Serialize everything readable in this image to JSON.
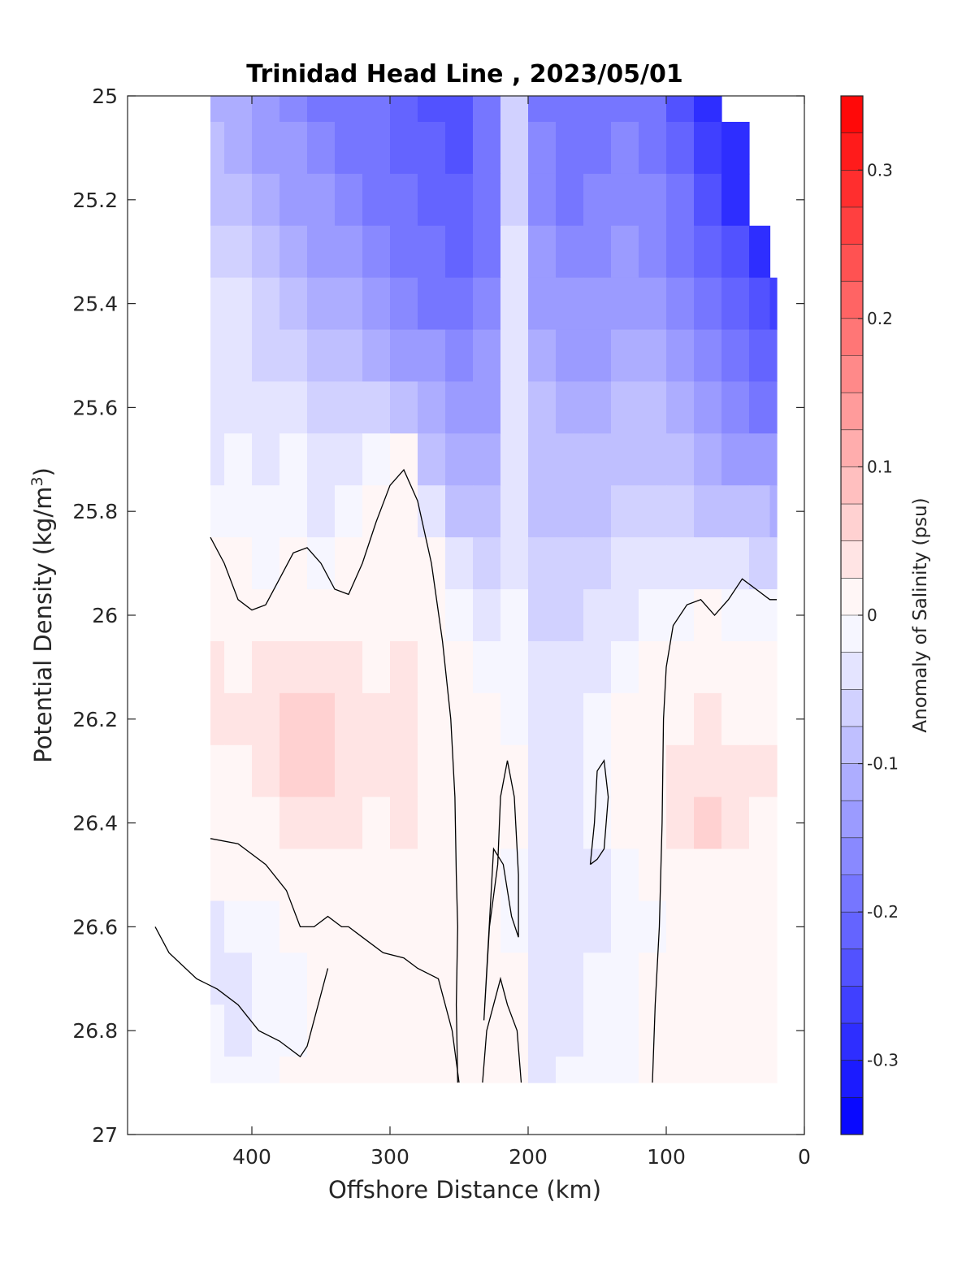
{
  "chart_data": {
    "type": "heatmap",
    "title": "Trinidad Head Line , 2023/05/01",
    "xlabel": "Offshore Distance (km)",
    "ylabel": "Potential Density (kg/m",
    "ylabel_sup": "3",
    "ylabel_close": ")",
    "colorbar_label": "Anomaly of Salinity (psu)",
    "xlim": [
      490,
      0
    ],
    "ylim": [
      25,
      27
    ],
    "x_ticks": [
      400,
      300,
      200,
      100,
      0
    ],
    "y_ticks": [
      "25",
      "25.2",
      "25.4",
      "25.6",
      "25.8",
      "26",
      "26.2",
      "26.4",
      "26.6",
      "26.8",
      "27"
    ],
    "colorbar_range": [
      -0.35,
      0.35
    ],
    "colorbar_step": 0.025,
    "colorbar_ticks": [
      "-0.3",
      "-0.2",
      "-0.1",
      "0",
      "0.1",
      "0.2",
      "0.3"
    ],
    "colormap": {
      "negative": "#0000ff",
      "zero": "#ffffff",
      "positive": "#ff0000"
    },
    "x": [
      430,
      410,
      390,
      370,
      350,
      330,
      310,
      290,
      270,
      250,
      230,
      210,
      190,
      170,
      150,
      130,
      110,
      90,
      70,
      50,
      30,
      20
    ],
    "y": [
      25.0,
      25.1,
      25.2,
      25.3,
      25.4,
      25.5,
      25.6,
      25.7,
      25.8,
      25.9,
      26.0,
      26.1,
      26.2,
      26.3,
      26.4,
      26.5,
      26.6,
      26.7,
      26.8,
      26.9
    ],
    "z": [
      [
        -0.11,
        -0.12,
        -0.14,
        -0.16,
        -0.18,
        -0.19,
        -0.2,
        -0.22,
        -0.23,
        -0.24,
        -0.2,
        -0.06,
        -0.18,
        -0.2,
        -0.19,
        -0.18,
        -0.19,
        -0.24,
        -0.3,
        null,
        null,
        null
      ],
      [
        -0.1,
        -0.11,
        -0.13,
        -0.15,
        -0.17,
        -0.18,
        -0.19,
        -0.21,
        -0.22,
        -0.23,
        -0.19,
        -0.06,
        -0.17,
        -0.19,
        -0.18,
        -0.17,
        -0.18,
        -0.22,
        -0.27,
        -0.3,
        null,
        null
      ],
      [
        -0.08,
        -0.09,
        -0.11,
        -0.13,
        -0.15,
        -0.16,
        -0.18,
        -0.2,
        -0.21,
        -0.22,
        -0.19,
        -0.06,
        -0.16,
        -0.18,
        -0.17,
        -0.16,
        -0.17,
        -0.2,
        -0.24,
        -0.28,
        null,
        null
      ],
      [
        -0.06,
        -0.07,
        -0.09,
        -0.11,
        -0.13,
        -0.15,
        -0.16,
        -0.18,
        -0.2,
        -0.21,
        -0.18,
        -0.05,
        -0.15,
        -0.17,
        -0.16,
        -0.15,
        -0.16,
        -0.18,
        -0.21,
        -0.25,
        -0.28,
        null
      ],
      [
        -0.05,
        -0.05,
        -0.07,
        -0.09,
        -0.11,
        -0.12,
        -0.14,
        -0.16,
        -0.18,
        -0.19,
        -0.17,
        -0.05,
        -0.14,
        -0.15,
        -0.15,
        -0.14,
        -0.14,
        -0.16,
        -0.19,
        -0.22,
        -0.25,
        -0.26
      ],
      [
        -0.04,
        -0.04,
        -0.06,
        -0.07,
        -0.09,
        -0.1,
        -0.11,
        -0.13,
        -0.15,
        -0.17,
        -0.15,
        -0.05,
        -0.12,
        -0.14,
        -0.13,
        -0.12,
        -0.12,
        -0.14,
        -0.16,
        -0.19,
        -0.21,
        -0.22
      ],
      [
        -0.03,
        -0.03,
        -0.05,
        -0.05,
        -0.07,
        -0.07,
        -0.06,
        -0.08,
        -0.12,
        -0.14,
        -0.13,
        -0.04,
        -0.1,
        -0.12,
        -0.11,
        -0.1,
        -0.1,
        -0.11,
        -0.13,
        -0.16,
        -0.18,
        -0.18
      ],
      [
        -0.03,
        -0.02,
        -0.04,
        -0.01,
        -0.05,
        -0.04,
        -0.02,
        0.0,
        -0.08,
        -0.11,
        -0.11,
        -0.04,
        -0.09,
        -0.1,
        -0.09,
        -0.08,
        -0.08,
        -0.09,
        -0.11,
        -0.13,
        -0.14,
        -0.15
      ],
      [
        -0.02,
        -0.01,
        -0.02,
        -0.01,
        -0.03,
        -0.02,
        0.0,
        0.01,
        -0.04,
        -0.08,
        -0.09,
        -0.03,
        -0.08,
        -0.09,
        -0.08,
        -0.07,
        -0.06,
        -0.07,
        -0.08,
        -0.09,
        -0.1,
        -0.11
      ],
      [
        0.0,
        0.0,
        -0.01,
        0.0,
        -0.01,
        0.0,
        0.01,
        0.02,
        0.0,
        -0.05,
        -0.07,
        -0.03,
        -0.07,
        -0.07,
        -0.06,
        -0.05,
        -0.04,
        -0.04,
        -0.05,
        -0.05,
        -0.06,
        -0.06
      ],
      [
        0.01,
        0.01,
        0.01,
        0.01,
        0.02,
        0.02,
        0.02,
        0.02,
        0.01,
        -0.02,
        -0.05,
        -0.02,
        -0.06,
        -0.06,
        -0.05,
        -0.03,
        -0.02,
        -0.01,
        0.0,
        -0.01,
        -0.02,
        -0.02
      ],
      [
        0.03,
        0.02,
        0.03,
        0.03,
        0.03,
        0.03,
        0.02,
        0.03,
        0.02,
        0.0,
        -0.02,
        -0.02,
        -0.05,
        -0.05,
        -0.03,
        -0.01,
        0.0,
        0.01,
        0.01,
        0.0,
        0.0,
        0.01
      ],
      [
        0.03,
        0.03,
        0.04,
        0.05,
        0.05,
        0.04,
        0.03,
        0.03,
        0.02,
        0.0,
        0.0,
        -0.01,
        -0.04,
        -0.04,
        -0.02,
        0.0,
        0.01,
        0.02,
        0.03,
        0.02,
        0.02,
        0.02
      ],
      [
        0.02,
        0.02,
        0.03,
        0.05,
        0.05,
        0.04,
        0.03,
        0.03,
        0.02,
        0.0,
        0.0,
        0.0,
        -0.04,
        -0.04,
        -0.01,
        0.0,
        0.01,
        0.03,
        0.03,
        0.03,
        0.03,
        0.03
      ],
      [
        0.02,
        0.01,
        0.02,
        0.04,
        0.04,
        0.03,
        0.02,
        0.03,
        0.01,
        0.0,
        0.0,
        0.0,
        -0.04,
        -0.04,
        -0.02,
        0.0,
        0.01,
        0.03,
        0.05,
        0.03,
        0.02,
        0.02
      ],
      [
        0.0,
        0.0,
        0.01,
        0.02,
        0.02,
        0.01,
        0.01,
        0.01,
        0.0,
        0.0,
        0.0,
        -0.01,
        -0.05,
        -0.04,
        -0.03,
        -0.01,
        0.0,
        0.02,
        0.02,
        0.02,
        0.02,
        0.01
      ],
      [
        -0.03,
        -0.02,
        -0.01,
        0.0,
        0.0,
        0.0,
        0.0,
        0.0,
        0.0,
        0.0,
        0.0,
        -0.01,
        -0.04,
        -0.04,
        -0.03,
        -0.02,
        -0.01,
        0.0,
        0.01,
        0.0,
        0.0,
        0.0
      ],
      [
        -0.03,
        -0.03,
        -0.01,
        -0.01,
        0.0,
        0.0,
        0.0,
        0.0,
        0.0,
        0.0,
        0.0,
        0.0,
        -0.03,
        -0.03,
        -0.02,
        -0.02,
        0.0,
        0.0,
        0.01,
        0.0,
        0.01,
        0.0
      ],
      [
        -0.02,
        -0.03,
        -0.01,
        -0.01,
        0.0,
        0.0,
        0.0,
        0.0,
        0.0,
        0.0,
        0.0,
        0.0,
        -0.03,
        -0.03,
        -0.02,
        -0.01,
        0.0,
        0.01,
        0.01,
        0.0,
        0.0,
        0.0
      ],
      [
        -0.02,
        -0.02,
        -0.01,
        0.0,
        0.0,
        0.0,
        0.0,
        0.0,
        0.0,
        0.0,
        0.0,
        0.0,
        -0.03,
        -0.02,
        -0.02,
        -0.01,
        0.0,
        0.01,
        0.01,
        0.0,
        0.0,
        0.0
      ]
    ],
    "zero_contours": [
      [
        [
          430,
          25.85
        ],
        [
          420,
          25.9
        ],
        [
          410,
          25.97
        ],
        [
          400,
          25.99
        ],
        [
          390,
          25.98
        ],
        [
          380,
          25.93
        ],
        [
          370,
          25.88
        ],
        [
          360,
          25.87
        ],
        [
          350,
          25.9
        ],
        [
          340,
          25.95
        ],
        [
          330,
          25.96
        ],
        [
          320,
          25.9
        ],
        [
          310,
          25.82
        ],
        [
          300,
          25.75
        ],
        [
          290,
          25.72
        ],
        [
          280,
          25.78
        ],
        [
          270,
          25.9
        ],
        [
          262,
          26.05
        ],
        [
          256,
          26.2
        ],
        [
          253,
          26.35
        ],
        [
          252,
          26.5
        ],
        [
          251,
          26.6
        ],
        [
          252,
          26.75
        ],
        [
          251,
          26.9
        ]
      ],
      [
        [
          430,
          26.43
        ],
        [
          410,
          26.44
        ],
        [
          390,
          26.48
        ],
        [
          375,
          26.53
        ],
        [
          365,
          26.6
        ],
        [
          355,
          26.6
        ],
        [
          345,
          26.58
        ],
        [
          335,
          26.6
        ],
        [
          330,
          26.6
        ],
        [
          320,
          26.62
        ],
        [
          305,
          26.65
        ],
        [
          290,
          26.66
        ],
        [
          280,
          26.68
        ],
        [
          265,
          26.7
        ],
        [
          255,
          26.8
        ],
        [
          250,
          26.9
        ]
      ],
      [
        [
          345,
          26.68
        ],
        [
          355,
          26.78
        ],
        [
          360,
          26.83
        ],
        [
          365,
          26.85
        ],
        [
          380,
          26.82
        ],
        [
          395,
          26.8
        ],
        [
          410,
          26.75
        ],
        [
          425,
          26.72
        ],
        [
          440,
          26.7
        ],
        [
          460,
          26.65
        ],
        [
          470,
          26.6
        ]
      ],
      [
        [
          232,
          26.78
        ],
        [
          228,
          26.6
        ],
        [
          222,
          26.48
        ],
        [
          220,
          26.35
        ],
        [
          215,
          26.28
        ],
        [
          210,
          26.35
        ],
        [
          207,
          26.5
        ],
        [
          207,
          26.62
        ],
        [
          212,
          26.58
        ],
        [
          218,
          26.48
        ],
        [
          225,
          26.45
        ],
        [
          232,
          26.78
        ]
      ],
      [
        [
          233,
          26.9
        ],
        [
          230,
          26.8
        ],
        [
          225,
          26.75
        ],
        [
          220,
          26.7
        ],
        [
          215,
          26.75
        ],
        [
          208,
          26.8
        ],
        [
          205,
          26.9
        ]
      ],
      [
        [
          155,
          26.48
        ],
        [
          152,
          26.4
        ],
        [
          150,
          26.3
        ],
        [
          145,
          26.28
        ],
        [
          142,
          26.35
        ],
        [
          145,
          26.45
        ],
        [
          150,
          26.47
        ],
        [
          155,
          26.48
        ]
      ],
      [
        [
          110,
          26.9
        ],
        [
          108,
          26.75
        ],
        [
          105,
          26.6
        ],
        [
          103,
          26.4
        ],
        [
          102,
          26.2
        ],
        [
          100,
          26.1
        ],
        [
          95,
          26.02
        ],
        [
          85,
          25.98
        ],
        [
          75,
          25.97
        ],
        [
          65,
          26.0
        ],
        [
          55,
          25.97
        ],
        [
          45,
          25.93
        ],
        [
          35,
          25.95
        ],
        [
          25,
          25.97
        ],
        [
          20,
          25.97
        ]
      ]
    ]
  }
}
